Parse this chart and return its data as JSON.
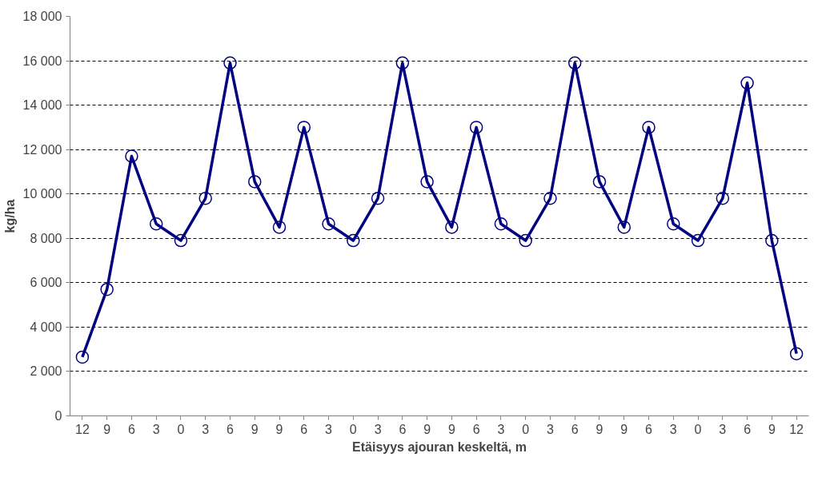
{
  "chart_data": {
    "type": "line",
    "xlabel": "Etäisyys ajouran keskeltä, m",
    "ylabel": "kg/ha",
    "categories": [
      "12",
      "9",
      "6",
      "3",
      "0",
      "3",
      "6",
      "9",
      "9",
      "6",
      "3",
      "0",
      "3",
      "6",
      "9",
      "9",
      "6",
      "3",
      "0",
      "3",
      "6",
      "9",
      "9",
      "6",
      "3",
      "0",
      "3",
      "6",
      "9",
      "12"
    ],
    "series": [
      {
        "color": "#000080",
        "values": [
          2650,
          5700,
          11700,
          8650,
          7900,
          9800,
          15900,
          10550,
          8500,
          13000,
          8650,
          7900,
          9800,
          15900,
          10550,
          8500,
          13000,
          8650,
          7900,
          9800,
          15900,
          10550,
          8500,
          13000,
          8650,
          7900,
          9800,
          15000,
          7900,
          2800
        ]
      }
    ],
    "ylim": [
      0,
      18000
    ],
    "yticks": [
      {
        "value": 0,
        "label": "0"
      },
      {
        "value": 2000,
        "label": "2 000"
      },
      {
        "value": 4000,
        "label": "4 000"
      },
      {
        "value": 6000,
        "label": "6 000"
      },
      {
        "value": 8000,
        "label": "8 000"
      },
      {
        "value": 10000,
        "label": "10 000"
      },
      {
        "value": 12000,
        "label": "12 000"
      },
      {
        "value": 14000,
        "label": "14 000"
      },
      {
        "value": 16000,
        "label": "16 000"
      },
      {
        "value": 18000,
        "label": "18 000"
      }
    ],
    "grid": "y",
    "marker": "circle",
    "line_style": "solid"
  }
}
